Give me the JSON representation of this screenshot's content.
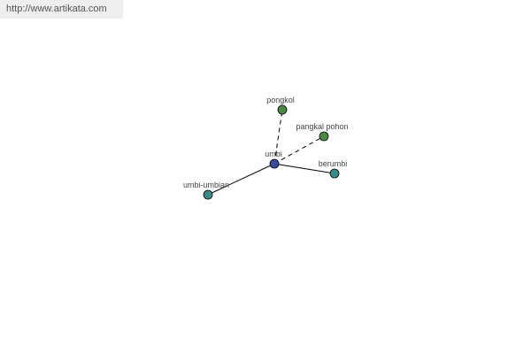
{
  "watermark": "http://www.artikata.com",
  "graph": {
    "center": {
      "label": "umbi",
      "color": "#3a4a9a"
    },
    "nodes": [
      {
        "label": "pongkol",
        "color": "#4a8a44",
        "edge": "dashed"
      },
      {
        "label": "pangkal pohon",
        "color": "#4a8a44",
        "edge": "dashed"
      },
      {
        "label": "berumbi",
        "color": "#3a8a86",
        "edge": "solid"
      },
      {
        "label": "umbi-umbian",
        "color": "#3a8a86",
        "edge": "solid"
      }
    ]
  }
}
